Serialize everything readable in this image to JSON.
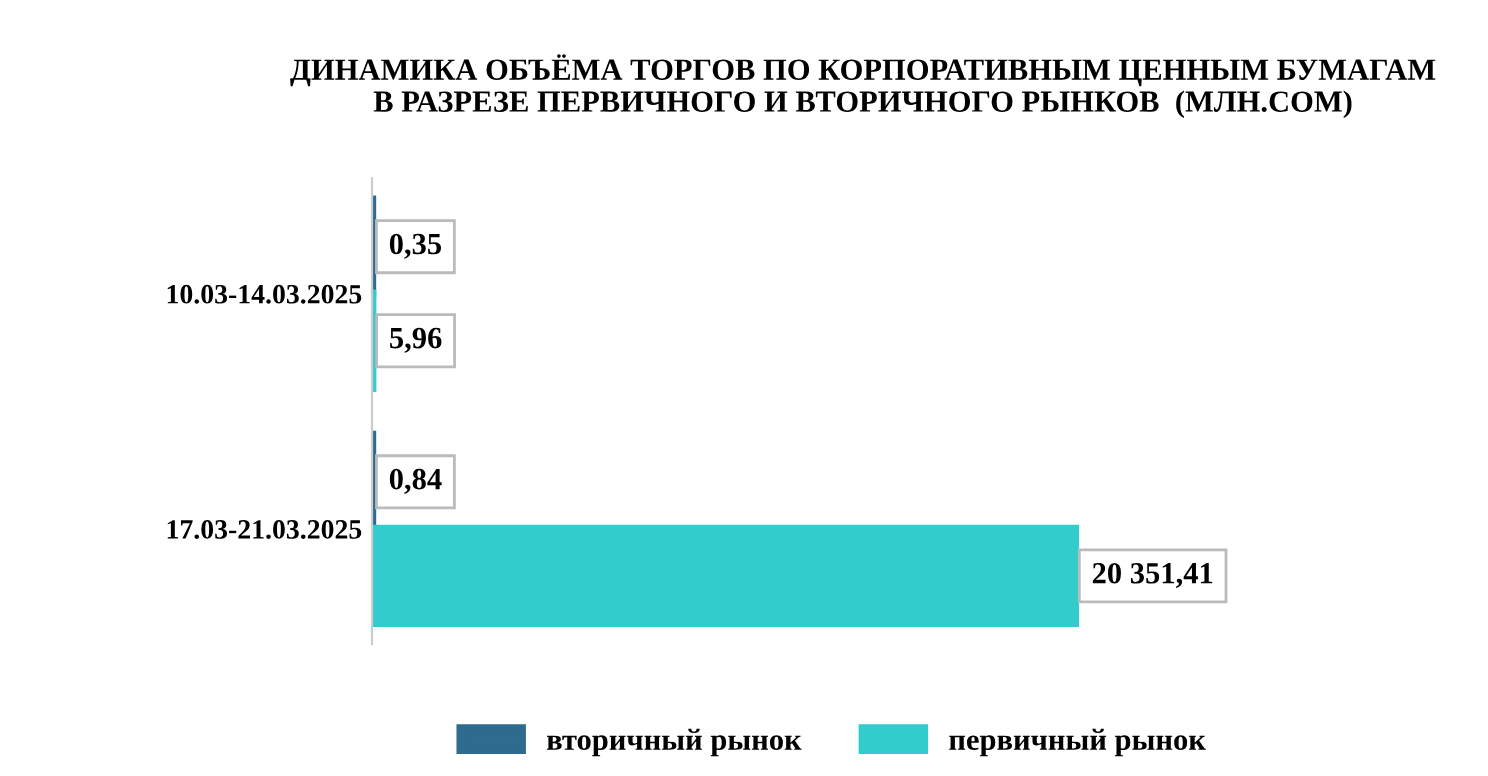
{
  "chart_data": {
    "type": "bar",
    "orientation": "horizontal",
    "title": "ДИНАМИКА ОБЪЁМА ТОРГОВ ПО КОРПОРАТИВНЫМ ЦЕННЫМ БУМАГАМ\nВ РАЗРЕЗЕ ПЕРВИЧНОГО И ВТОРИЧНОГО РЫНКОВ  (МЛН.СОМ)",
    "categories": [
      "10.03-14.03.2025",
      "17.03-21.03.2025"
    ],
    "series": [
      {
        "name": "вторичный рынок",
        "color": "#2e6b8e",
        "values": [
          0.35,
          0.84
        ],
        "value_labels": [
          "0,35",
          "0,84"
        ]
      },
      {
        "name": "первичный рынок",
        "color": "#33cccc",
        "values": [
          5.96,
          20351.41
        ],
        "value_labels": [
          "5,96",
          "20 351,41"
        ]
      }
    ],
    "legend": "bottom"
  }
}
